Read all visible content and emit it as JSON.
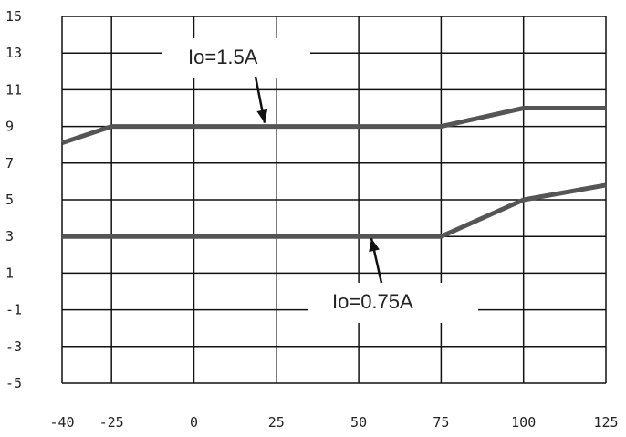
{
  "chart_data": {
    "type": "line",
    "title": "",
    "xlabel": "",
    "ylabel": "",
    "xlim": [
      -40,
      125
    ],
    "ylim": [
      -5,
      15
    ],
    "grid": true,
    "legend": "none",
    "xticks": [
      "-40",
      "-25",
      "0",
      "25",
      "50",
      "75",
      "100",
      "125"
    ],
    "xtick_values": [
      -40,
      -25,
      0,
      25,
      50,
      75,
      100,
      125
    ],
    "yticks": [
      "15",
      "13",
      "11",
      "9",
      "7",
      "5",
      "3",
      "1",
      "-1",
      "-3",
      "-5"
    ],
    "ytick_values": [
      15,
      13,
      11,
      9,
      7,
      5,
      3,
      1,
      -1,
      -3,
      -5
    ],
    "line_color": "#555555",
    "series": [
      {
        "x": [
          -40,
          -25,
          75,
          100,
          125
        ],
        "y": [
          8.1,
          9.0,
          9.0,
          10.0,
          10.0
        ]
      },
      {
        "x": [
          -40,
          75,
          100,
          125
        ],
        "y": [
          3.0,
          3.0,
          5.0,
          5.8
        ]
      }
    ],
    "annotations": [
      {
        "text": "Io=1.5A",
        "x": 15,
        "y": 9.0
      },
      {
        "text": "Io=0.75A",
        "x": 50,
        "y": 3.0
      }
    ]
  }
}
